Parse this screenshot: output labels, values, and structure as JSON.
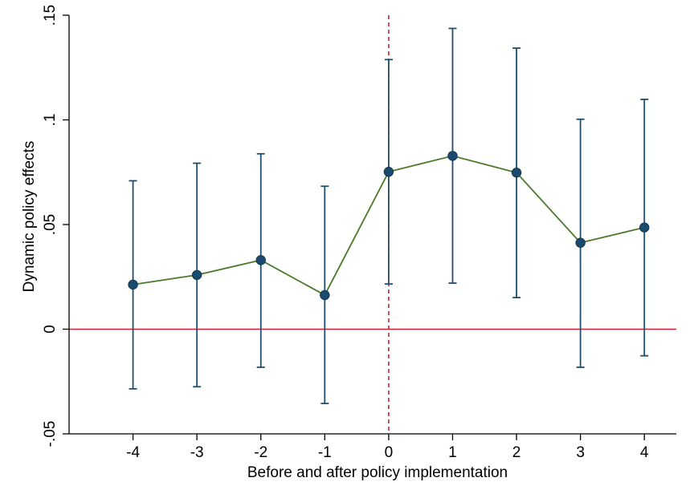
{
  "chart_data": {
    "type": "line",
    "title": "",
    "xlabel": "Before and after policy implementation",
    "ylabel": "Dynamic policy effects",
    "x": [
      -4,
      -3,
      -2,
      -1,
      0,
      1,
      2,
      3,
      4
    ],
    "y_tick_labels": [
      ".15",
      ".1",
      ".05",
      "0",
      "-.05"
    ],
    "y_tick_values": [
      0.15,
      0.1,
      0.05,
      0,
      -0.05
    ],
    "x_tick_labels": [
      "-4",
      "-3",
      "-2",
      "-1",
      "0",
      "1",
      "2",
      "3",
      "4"
    ],
    "xlim": [
      -5,
      4.5
    ],
    "ylim": [
      -0.05,
      0.15
    ],
    "series": [
      {
        "values": [
          0.0213,
          0.0259,
          0.033,
          0.0163,
          0.0752,
          0.0828,
          0.0748,
          0.0413,
          0.0486
        ],
        "ci_lower": [
          -0.0285,
          -0.0275,
          -0.0182,
          -0.0355,
          0.0216,
          0.022,
          0.0151,
          -0.0182,
          -0.0127
        ],
        "ci_upper": [
          0.0709,
          0.0793,
          0.0838,
          0.0683,
          0.1288,
          0.1437,
          0.1343,
          0.1003,
          0.1098
        ]
      }
    ],
    "reference_lines": {
      "horizontal_y": 0,
      "vertical_x": 0
    },
    "grid": false,
    "legend": "none",
    "colors": {
      "line": "#4a7a2a",
      "marker": "#1a4a6e",
      "error_bar": "#1f4e6e",
      "hline": "#cc2233",
      "vline": "#cc2233",
      "axis": "#000000"
    }
  }
}
